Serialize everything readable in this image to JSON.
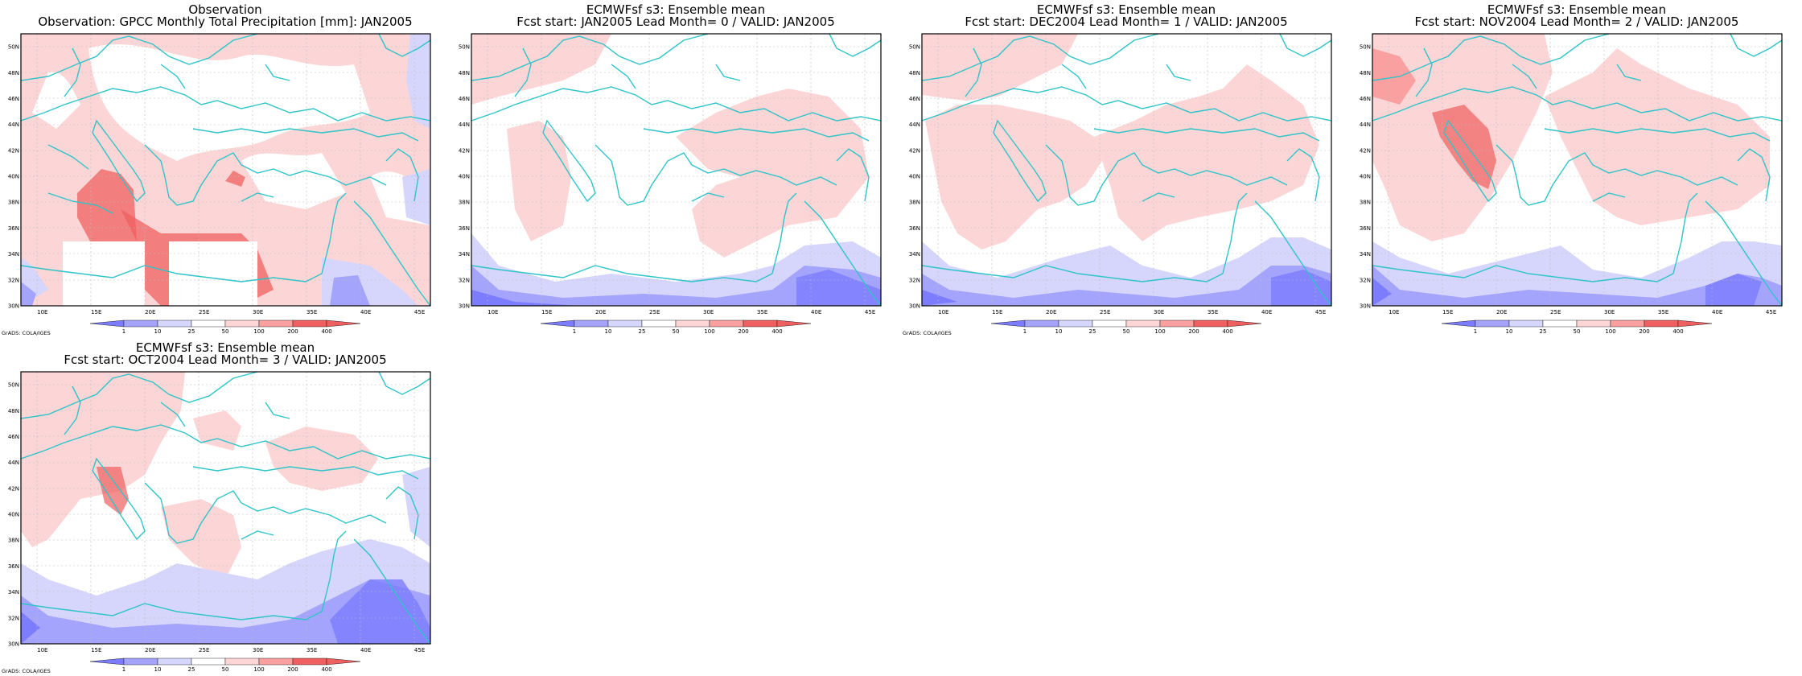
{
  "colors": {
    "map_frame": "#000000",
    "coastline": "#2ec4c8",
    "grid": "#bbbbbb",
    "bin_lt1": "#7c7cff",
    "bin_1_10": "#a4a4fc",
    "bin_10_25": "#d6d6fc",
    "bin_25_50": "#ffffff",
    "bin_50_100": "#fcd6d6",
    "bin_100_200": "#faa0a0",
    "bin_gt200": "#f06060"
  },
  "axes": {
    "lon_ticks": [
      "10E",
      "15E",
      "20E",
      "25E",
      "30E",
      "35E",
      "40E",
      "45E"
    ],
    "lat_ticks": [
      "50N",
      "48N",
      "46N",
      "44N",
      "42N",
      "40N",
      "38N",
      "36N",
      "34N",
      "32N",
      "30N"
    ],
    "lon_range_deg_east": [
      8,
      46
    ],
    "lat_range_deg_north": [
      30,
      51
    ]
  },
  "colorbar": {
    "labels": [
      "1",
      "10",
      "25",
      "50",
      "100",
      "200",
      "400"
    ]
  },
  "credit": "GrADS: COLA/IGES",
  "panels": [
    {
      "title_line1": "Observation",
      "title_line2": "Observation: GPCC Monthly Total Precipitation [mm]: JAN2005",
      "kind": "observation"
    },
    {
      "title_line1": "ECMWFsf s3: Ensemble mean",
      "title_line2": "Fcst start: JAN2005  Lead Month= 0 / VALID: JAN2005",
      "kind": "forecast"
    },
    {
      "title_line1": "ECMWFsf s3: Ensemble mean",
      "title_line2": "Fcst start: DEC2004  Lead Month= 1 / VALID: JAN2005",
      "kind": "forecast"
    },
    {
      "title_line1": "ECMWFsf s3: Ensemble mean",
      "title_line2": "Fcst start: NOV2004  Lead Month= 2 / VALID: JAN2005",
      "kind": "forecast"
    },
    {
      "title_line1": "ECMWFsf s3: Ensemble mean",
      "title_line2": "Fcst start: OCT2004  Lead Month= 3 / VALID: JAN2005",
      "kind": "forecast"
    }
  ]
}
